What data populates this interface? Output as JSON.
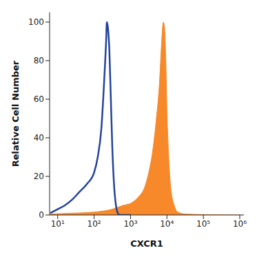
{
  "chart_data": {
    "type": "line",
    "xlabel": "CXCR1",
    "ylabel": "Relative Cell Number",
    "log": "x",
    "xlim": [
      6,
      1300000
    ],
    "xticks": [
      {
        "value": 10,
        "label": "10¹"
      },
      {
        "value": 100,
        "label": "10²"
      },
      {
        "value": 1000,
        "label": "10³"
      },
      {
        "value": 10000,
        "label": "10⁴"
      },
      {
        "value": 100000,
        "label": "10⁵"
      },
      {
        "value": 1000000,
        "label": "10⁶"
      }
    ],
    "ylim": [
      0,
      105
    ],
    "yticks": [
      0,
      20,
      40,
      60,
      80,
      100
    ],
    "grid": false,
    "series": [
      {
        "type": "area",
        "color": "#f7892a",
        "x": [
          6.3,
          31.6,
          100,
          316.2,
          631,
          1000,
          1585,
          2512,
          3162,
          3981,
          5012,
          6310,
          7079,
          7943,
          8511,
          9333,
          10000,
          11220,
          12589,
          15849,
          19953,
          31623,
          100000,
          1000000
        ],
        "values": [
          0.5,
          1,
          1.5,
          3,
          5,
          6,
          9,
          15,
          22,
          32,
          48,
          70,
          88,
          100,
          98,
          80,
          55,
          30,
          15,
          5,
          1.5,
          0.5,
          0.2,
          0
        ]
      },
      {
        "type": "line",
        "color": "#23439b",
        "x": [
          6.3,
          10,
          15.8,
          25.1,
          39.8,
          63.1,
          100,
          125.9,
          158.5,
          177.8,
          199.5,
          213.8,
          223.9,
          239.9,
          263.0,
          288.4,
          316.2,
          354.8,
          398.1,
          446.7,
          501.2,
          1000
        ],
        "values": [
          1,
          3,
          5,
          8,
          12,
          16,
          22,
          30,
          45,
          60,
          78,
          90,
          100,
          97,
          85,
          60,
          35,
          15,
          5,
          1,
          0,
          0
        ]
      }
    ]
  }
}
